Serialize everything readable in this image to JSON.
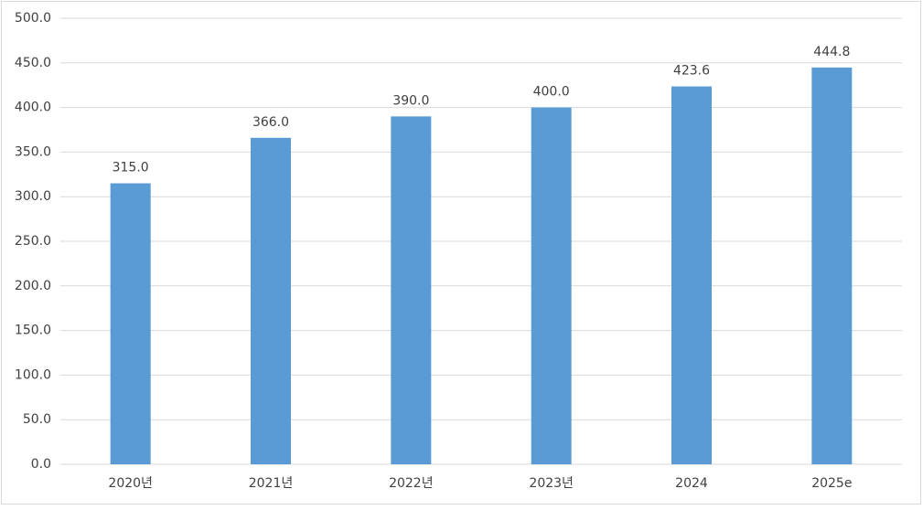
{
  "chart_data": {
    "type": "bar",
    "categories": [
      "2020년",
      "2021년",
      "2022년",
      "2023년",
      "2024",
      "2025e"
    ],
    "values": [
      315.0,
      366.0,
      390.0,
      400.0,
      423.6,
      444.8
    ],
    "value_labels": [
      "315.0",
      "366.0",
      "390.0",
      "400.0",
      "423.6",
      "444.8"
    ],
    "color": "#5b9bd5",
    "ylim": [
      0,
      500
    ],
    "yticks": [
      {
        "value": 0,
        "label": "0.0"
      },
      {
        "value": 50,
        "label": "50.0"
      },
      {
        "value": 100,
        "label": "100.0"
      },
      {
        "value": 150,
        "label": "150.0"
      },
      {
        "value": 200,
        "label": "200.0"
      },
      {
        "value": 250,
        "label": "250.0"
      },
      {
        "value": 300,
        "label": "300.0"
      },
      {
        "value": 350,
        "label": "350.0"
      },
      {
        "value": 400,
        "label": "400.0"
      },
      {
        "value": 450,
        "label": "450.0"
      },
      {
        "value": 500,
        "label": "500.0"
      }
    ],
    "grid": true
  }
}
